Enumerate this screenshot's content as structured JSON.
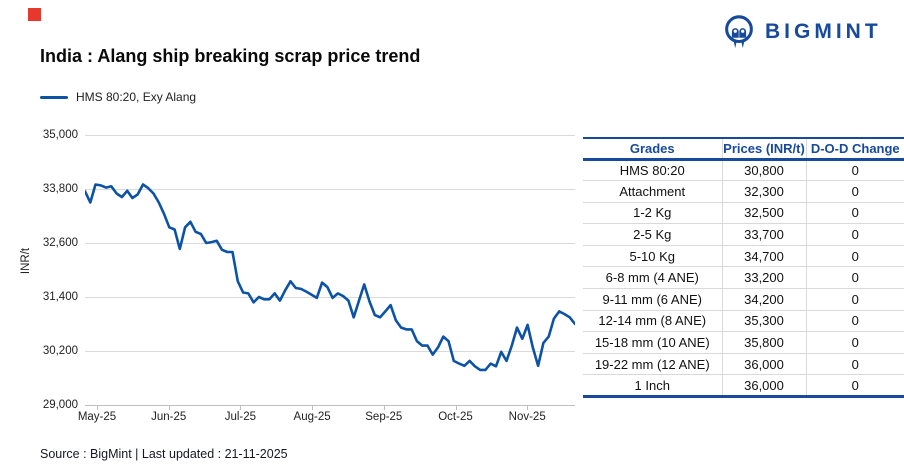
{
  "logo": {
    "text": "BIGMINT"
  },
  "marker_color": "#e6382c",
  "header": {
    "title": "India : Alang ship breaking scrap price trend"
  },
  "legend": {
    "label": "HMS 80:20, Exy Alang"
  },
  "chart_data": {
    "type": "line",
    "title": "India : Alang ship breaking scrap price trend",
    "ylabel": "INR/t",
    "xlabel": "",
    "ylim": [
      29000,
      35000
    ],
    "grid": "horizontal",
    "legend_position": "top-left",
    "line_color": "#0d53a5",
    "y_ticks": [
      35000,
      33800,
      32600,
      31400,
      30200,
      29000
    ],
    "y_tick_labels": [
      "35,000",
      "33,800",
      "32,600",
      "31,400",
      "30,200",
      "29,000"
    ],
    "x_tick_labels": [
      "May-25",
      "Jun-25",
      "Jul-25",
      "Aug-25",
      "Sep-25",
      "Oct-25",
      "Nov-25"
    ],
    "series": [
      {
        "name": "HMS 80:20, Exy Alang",
        "values": [
          33750,
          33500,
          33900,
          33880,
          33830,
          33860,
          33700,
          33620,
          33760,
          33600,
          33680,
          33900,
          33820,
          33700,
          33500,
          33250,
          32950,
          32900,
          32470,
          32950,
          33070,
          32850,
          32800,
          32600,
          32620,
          32650,
          32450,
          32400,
          32400,
          31750,
          31500,
          31480,
          31280,
          31400,
          31350,
          31350,
          31480,
          31320,
          31550,
          31750,
          31600,
          31580,
          31520,
          31450,
          31380,
          31720,
          31620,
          31380,
          31480,
          31420,
          31320,
          30950,
          31320,
          31680,
          31300,
          31000,
          30950,
          31080,
          31220,
          30880,
          30720,
          30680,
          30680,
          30420,
          30320,
          30320,
          30120,
          30280,
          30520,
          30420,
          29980,
          29920,
          29870,
          29980,
          29860,
          29780,
          29780,
          29920,
          29860,
          30180,
          29980,
          30320,
          30720,
          30470,
          30780,
          30280,
          29870,
          30380,
          30520,
          30920,
          31080,
          31020,
          30950,
          30800
        ]
      }
    ]
  },
  "table": {
    "headers": [
      "Grades",
      "Prices (INR/t)",
      "D-O-D Change"
    ],
    "rows": [
      [
        "HMS 80:20",
        "30,800",
        "0"
      ],
      [
        "Attachment",
        "32,300",
        "0"
      ],
      [
        "1-2 Kg",
        "32,500",
        "0"
      ],
      [
        "2-5 Kg",
        "33,700",
        "0"
      ],
      [
        "5-10 Kg",
        "34,700",
        "0"
      ],
      [
        "6-8 mm (4 ANE)",
        "33,200",
        "0"
      ],
      [
        "9-11 mm (6 ANE)",
        "34,200",
        "0"
      ],
      [
        "12-14 mm (8 ANE)",
        "35,300",
        "0"
      ],
      [
        "15-18 mm (10 ANE)",
        "35,800",
        "0"
      ],
      [
        "19-22 mm (12 ANE)",
        "36,000",
        "0"
      ],
      [
        "1 Inch",
        "36,000",
        "0"
      ]
    ]
  },
  "footer": {
    "source": "Source : BigMint | Last updated : 21-11-2025"
  }
}
